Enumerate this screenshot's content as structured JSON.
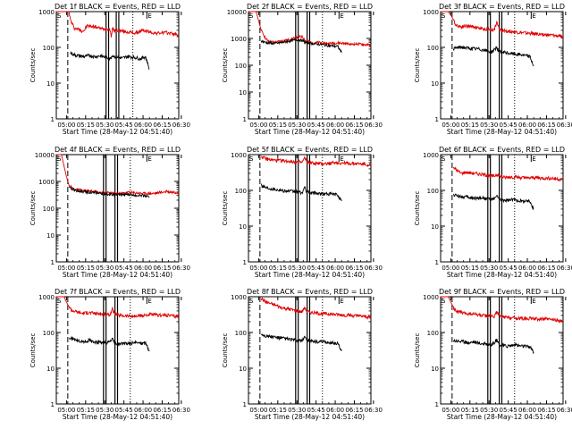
{
  "chart_data": [
    {
      "type": "line",
      "title": "Det 1f BLACK = Events, RED = LLD",
      "xlabel": "Start Time (28-May-12 04:51:40)",
      "ylabel": "Counts/sec",
      "ylog": true,
      "ylim": [
        1,
        1000
      ],
      "xticks": [
        "05:00",
        "05:15",
        "05:30",
        "05:45",
        "06:00",
        "06:15",
        "06:30"
      ],
      "yticks": [
        "1",
        "10",
        "100",
        "1000"
      ],
      "series": [
        {
          "color": "#e00000",
          "x": [
            0,
            10,
            11,
            14,
            18,
            20,
            22,
            24,
            30,
            36,
            42,
            43,
            44,
            45,
            50,
            56,
            62,
            68,
            73,
            78,
            80,
            84,
            90,
            96
          ],
          "y": [
            1000,
            1000,
            600,
            350,
            320,
            290,
            300,
            400,
            380,
            330,
            330,
            200,
            340,
            300,
            290,
            270,
            250,
            300,
            270,
            250,
            250,
            260,
            250,
            220
          ]
        },
        {
          "color": "#000000",
          "x": [
            11,
            14,
            18,
            22,
            26,
            30,
            34,
            40,
            42,
            44,
            46,
            52,
            56,
            62,
            66,
            70,
            73
          ],
          "y": [
            70,
            62,
            58,
            55,
            60,
            55,
            58,
            52,
            48,
            60,
            55,
            50,
            56,
            52,
            48,
            55,
            25
          ]
        }
      ],
      "events": [
        {
          "label": "S",
          "at": 0
        },
        {
          "label": "E",
          "at": 71
        }
      ],
      "dashed": [
        9
      ],
      "dotted": [
        60
      ],
      "solid": [
        39,
        41,
        47,
        49
      ]
    },
    {
      "type": "line",
      "title": "Det 2f BLACK = Events, RED = LLD",
      "xlabel": "Start Time (28-May-12 04:51:40)",
      "ylabel": "Counts/sec",
      "ylog": true,
      "ylim": [
        1,
        10000
      ],
      "xticks": [
        "05:00",
        "05:15",
        "05:30",
        "05:45",
        "06:00",
        "06:15",
        "06:30"
      ],
      "yticks": [
        "1",
        "10",
        "100",
        "1000",
        "10000"
      ],
      "series": [
        {
          "color": "#e00000",
          "x": [
            0,
            6,
            10,
            14,
            20,
            26,
            32,
            38,
            42,
            45,
            50,
            56,
            62,
            70,
            76,
            80,
            86,
            92,
            96
          ],
          "y": [
            10000,
            10000,
            2000,
            900,
            700,
            800,
            900,
            1100,
            1200,
            800,
            700,
            700,
            650,
            680,
            650,
            600,
            620,
            580,
            560
          ]
        },
        {
          "color": "#000000",
          "x": [
            10,
            14,
            20,
            26,
            32,
            38,
            42,
            45,
            50,
            56,
            62,
            70,
            73
          ],
          "y": [
            800,
            700,
            650,
            700,
            800,
            900,
            850,
            700,
            650,
            600,
            550,
            500,
            300
          ]
        }
      ],
      "events": [
        {
          "label": "S",
          "at": 0
        },
        {
          "label": "E",
          "at": 71
        }
      ],
      "dashed": [
        9
      ],
      "dotted": [
        58
      ],
      "solid": [
        37,
        39,
        46,
        48
      ]
    },
    {
      "type": "line",
      "title": "Det 3f BLACK = Events, RED = LLD",
      "xlabel": "Start Time (28-May-12 04:51:40)",
      "ylabel": "Counts/sec",
      "ylog": true,
      "ylim": [
        1,
        1000
      ],
      "xticks": [
        "05:00",
        "05:15",
        "05:30",
        "05:45",
        "06:00",
        "06:15",
        "06:30"
      ],
      "yticks": [
        "1",
        "10",
        "100",
        "1000"
      ],
      "series": [
        {
          "color": "#e00000",
          "x": [
            0,
            6,
            9,
            12,
            16,
            20,
            26,
            32,
            38,
            42,
            44,
            46,
            50,
            56,
            62,
            68,
            74,
            80,
            86,
            92,
            96
          ],
          "y": [
            1000,
            1000,
            700,
            420,
            380,
            400,
            380,
            330,
            320,
            310,
            500,
            320,
            290,
            280,
            260,
            250,
            240,
            230,
            220,
            210,
            200
          ]
        },
        {
          "color": "#000000",
          "x": [
            10,
            14,
            18,
            22,
            26,
            30,
            36,
            40,
            44,
            46,
            52,
            58,
            64,
            70,
            73
          ],
          "y": [
            90,
            100,
            100,
            95,
            92,
            90,
            80,
            75,
            100,
            75,
            70,
            65,
            62,
            55,
            30
          ]
        }
      ],
      "events": [
        {
          "label": "S",
          "at": 0
        },
        {
          "label": "E",
          "at": 71
        }
      ],
      "dashed": [
        9
      ],
      "dotted": [
        58
      ],
      "solid": [
        37,
        39,
        46,
        48
      ]
    },
    {
      "type": "line",
      "title": "Det 4f BLACK = Events, RED = LLD",
      "xlabel": "Start Time (28-May-12 04:51:40)",
      "ylabel": "Counts/sec",
      "ylog": true,
      "ylim": [
        1,
        10000
      ],
      "xticks": [
        "05:00",
        "05:15",
        "05:30",
        "05:45",
        "06:00",
        "06:15",
        "06:30"
      ],
      "yticks": [
        "1",
        "10",
        "100",
        "1000",
        "10000"
      ],
      "series": [
        {
          "color": "#e00000",
          "x": [
            0,
            4,
            8,
            10,
            14,
            20,
            30,
            40,
            50,
            56,
            62,
            70,
            76,
            80,
            86,
            92,
            96
          ],
          "y": [
            10000,
            10000,
            1500,
            700,
            520,
            460,
            420,
            380,
            350,
            400,
            380,
            360,
            360,
            380,
            420,
            400,
            380
          ]
        },
        {
          "color": "#000000",
          "x": [
            10,
            14,
            20,
            30,
            40,
            50,
            56,
            62,
            70,
            73
          ],
          "y": [
            600,
            480,
            420,
            380,
            340,
            320,
            330,
            310,
            300,
            250
          ]
        }
      ],
      "events": [
        {
          "label": "S",
          "at": 0
        },
        {
          "label": "E",
          "at": 71
        }
      ],
      "dashed": [
        9
      ],
      "dotted": [
        58
      ],
      "solid": [
        37,
        39,
        46,
        48
      ]
    },
    {
      "type": "line",
      "title": "Det 5f BLACK = Events, RED = LLD",
      "xlabel": "Start Time (28-May-12 04:51:40)",
      "ylabel": "Counts/sec",
      "ylog": true,
      "ylim": [
        1,
        1000
      ],
      "xticks": [
        "05:00",
        "05:15",
        "05:30",
        "05:45",
        "06:00",
        "06:15",
        "06:30"
      ],
      "yticks": [
        "1",
        "10",
        "100",
        "1000"
      ],
      "series": [
        {
          "color": "#e00000",
          "x": [
            10,
            14,
            20,
            26,
            32,
            38,
            42,
            44,
            46,
            50,
            56,
            62,
            68,
            74,
            80,
            86,
            92,
            96
          ],
          "y": [
            900,
            750,
            700,
            680,
            650,
            620,
            600,
            800,
            620,
            580,
            560,
            560,
            600,
            580,
            560,
            560,
            540,
            500
          ]
        },
        {
          "color": "#000000",
          "x": [
            10,
            14,
            20,
            26,
            32,
            38,
            42,
            44,
            46,
            52,
            58,
            64,
            70,
            73
          ],
          "y": [
            140,
            120,
            110,
            100,
            95,
            90,
            85,
            120,
            90,
            85,
            80,
            80,
            75,
            50
          ]
        }
      ],
      "events": [
        {
          "label": "S",
          "at": 0
        },
        {
          "label": "E",
          "at": 71
        }
      ],
      "dashed": [
        9
      ],
      "dotted": [
        58
      ],
      "solid": [
        37,
        39,
        46,
        48
      ]
    },
    {
      "type": "line",
      "title": "Det 6f BLACK = Events, RED = LLD",
      "xlabel": "Start Time (28-May-12 04:51:40)",
      "ylabel": "Counts/sec",
      "ylog": true,
      "ylim": [
        1,
        1000
      ],
      "xticks": [
        "05:00",
        "05:15",
        "05:30",
        "05:45",
        "06:00",
        "06:15",
        "06:30"
      ],
      "yticks": [
        "1",
        "10",
        "100",
        "1000"
      ],
      "series": [
        {
          "color": "#e00000",
          "x": [
            10,
            12,
            16,
            20,
            26,
            32,
            38,
            42,
            44,
            46,
            50,
            56,
            62,
            68,
            74,
            80,
            86,
            92,
            96
          ],
          "y": [
            450,
            380,
            300,
            320,
            300,
            280,
            260,
            250,
            280,
            250,
            230,
            240,
            230,
            220,
            230,
            220,
            220,
            210,
            200
          ]
        },
        {
          "color": "#000000",
          "x": [
            10,
            14,
            20,
            26,
            32,
            38,
            42,
            44,
            46,
            52,
            58,
            64,
            70,
            73
          ],
          "y": [
            75,
            70,
            65,
            60,
            62,
            58,
            55,
            75,
            55,
            52,
            55,
            50,
            50,
            30
          ]
        }
      ],
      "events": [
        {
          "label": "S",
          "at": 0
        },
        {
          "label": "E",
          "at": 71
        }
      ],
      "dashed": [
        9
      ],
      "dotted": [
        58
      ],
      "solid": [
        37,
        39,
        46,
        48
      ]
    },
    {
      "type": "line",
      "title": "Det 7f BLACK = Events, RED = LLD",
      "xlabel": "Start Time (28-May-12 04:51:40)",
      "ylabel": "Counts/sec",
      "ylog": true,
      "ylim": [
        1,
        1000
      ],
      "xticks": [
        "05:00",
        "05:15",
        "05:30",
        "05:45",
        "06:00",
        "06:15",
        "06:30"
      ],
      "yticks": [
        "1",
        "10",
        "100",
        "1000"
      ],
      "series": [
        {
          "color": "#e00000",
          "x": [
            0,
            6,
            9,
            12,
            16,
            20,
            26,
            32,
            38,
            42,
            44,
            46,
            50,
            56,
            62,
            68,
            74,
            80,
            86,
            92,
            96
          ],
          "y": [
            1000,
            1000,
            600,
            420,
            380,
            350,
            360,
            340,
            320,
            310,
            450,
            330,
            300,
            290,
            280,
            300,
            320,
            300,
            310,
            290,
            280
          ]
        },
        {
          "color": "#000000",
          "x": [
            10,
            14,
            18,
            22,
            26,
            30,
            36,
            40,
            44,
            46,
            52,
            58,
            64,
            70,
            73
          ],
          "y": [
            70,
            65,
            58,
            55,
            60,
            55,
            52,
            50,
            65,
            50,
            48,
            50,
            52,
            50,
            30
          ]
        }
      ],
      "events": [
        {
          "label": "S",
          "at": 0
        },
        {
          "label": "E",
          "at": 71
        }
      ],
      "dashed": [
        9
      ],
      "dotted": [
        58
      ],
      "solid": [
        37,
        39,
        46,
        48
      ]
    },
    {
      "type": "line",
      "title": "Det 8f BLACK = Events, RED = LLD",
      "xlabel": "Start Time (28-May-12 04:51:40)",
      "ylabel": "Counts/sec",
      "ylog": true,
      "ylim": [
        1,
        1000
      ],
      "xticks": [
        "05:00",
        "05:15",
        "05:30",
        "05:45",
        "06:00",
        "06:15",
        "06:30"
      ],
      "yticks": [
        "1",
        "10",
        "100",
        "1000"
      ],
      "series": [
        {
          "color": "#e00000",
          "x": [
            10,
            14,
            20,
            26,
            32,
            38,
            42,
            44,
            46,
            50,
            56,
            62,
            68,
            74,
            80,
            86,
            92,
            96
          ],
          "y": [
            900,
            700,
            600,
            500,
            450,
            400,
            380,
            500,
            380,
            360,
            340,
            330,
            320,
            310,
            300,
            290,
            280,
            260
          ]
        },
        {
          "color": "#000000",
          "x": [
            10,
            14,
            20,
            26,
            32,
            38,
            42,
            44,
            46,
            52,
            58,
            64,
            70,
            73
          ],
          "y": [
            90,
            80,
            75,
            70,
            65,
            60,
            58,
            80,
            60,
            55,
            55,
            52,
            50,
            30
          ]
        }
      ],
      "events": [
        {
          "label": "S",
          "at": 0
        },
        {
          "label": "E",
          "at": 71
        }
      ],
      "dashed": [
        9
      ],
      "dotted": [
        58
      ],
      "solid": [
        37,
        39,
        46,
        48
      ]
    },
    {
      "type": "line",
      "title": "Det 9f BLACK = Events, RED = LLD",
      "xlabel": "Start Time (28-May-12 04:51:40)",
      "ylabel": "Counts/sec",
      "ylog": true,
      "ylim": [
        1,
        1000
      ],
      "xticks": [
        "05:00",
        "05:15",
        "05:30",
        "05:45",
        "06:00",
        "06:15",
        "06:30"
      ],
      "yticks": [
        "1",
        "10",
        "100",
        "1000"
      ],
      "series": [
        {
          "color": "#e00000",
          "x": [
            0,
            6,
            9,
            12,
            16,
            20,
            26,
            32,
            38,
            42,
            44,
            46,
            50,
            56,
            62,
            68,
            74,
            80,
            86,
            92,
            96
          ],
          "y": [
            1000,
            1000,
            600,
            400,
            360,
            340,
            330,
            300,
            290,
            280,
            380,
            290,
            270,
            260,
            250,
            250,
            240,
            240,
            230,
            220,
            210
          ]
        },
        {
          "color": "#000000",
          "x": [
            10,
            14,
            18,
            22,
            26,
            30,
            36,
            40,
            44,
            46,
            52,
            58,
            64,
            70,
            73
          ],
          "y": [
            60,
            58,
            55,
            52,
            55,
            50,
            48,
            45,
            60,
            45,
            42,
            45,
            42,
            40,
            28
          ]
        }
      ],
      "events": [
        {
          "label": "S",
          "at": 0
        },
        {
          "label": "E",
          "at": 71
        }
      ],
      "dashed": [
        9
      ],
      "dotted": [
        58
      ],
      "solid": [
        37,
        39,
        46,
        48
      ]
    }
  ]
}
